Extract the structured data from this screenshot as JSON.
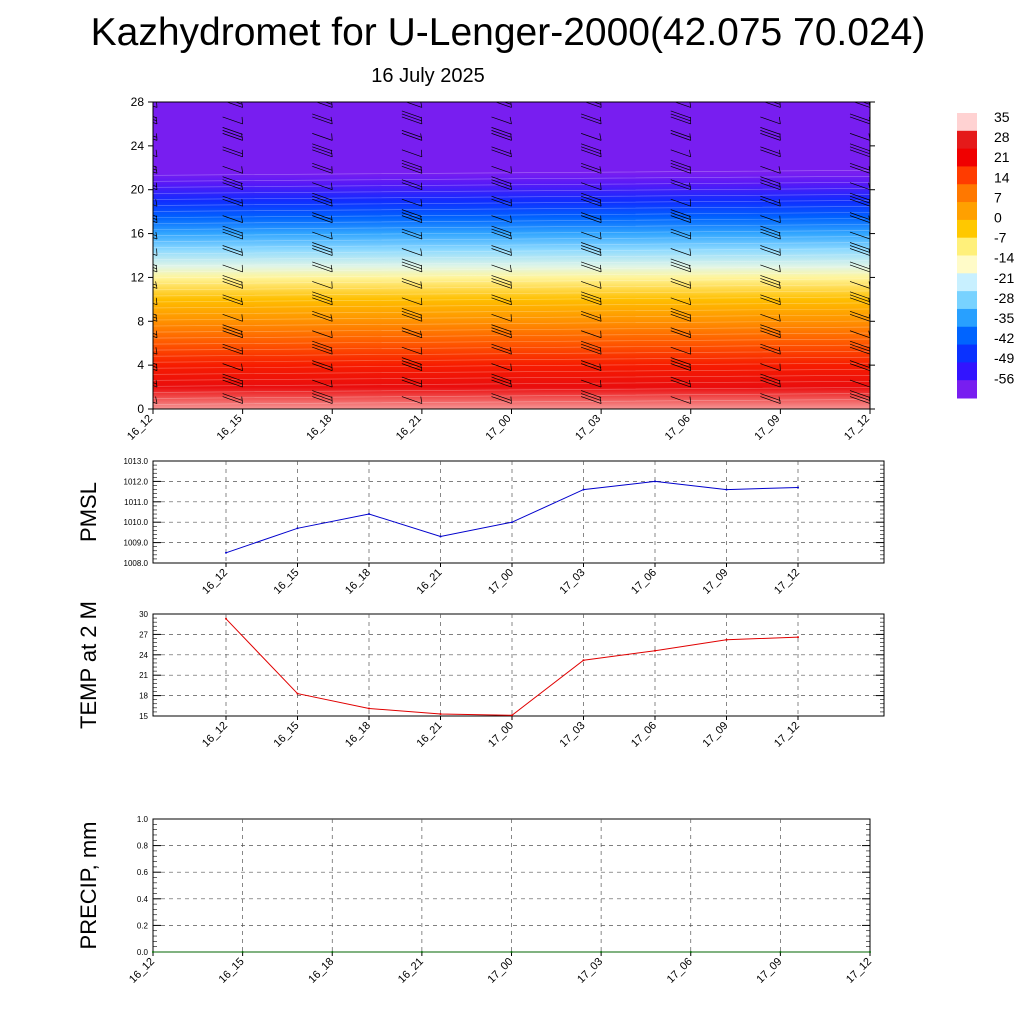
{
  "title": "Kazhydromet for U-Lenger-2000(42.075 70.024)",
  "subtitle": "16 July 2025",
  "colorbar": {
    "labels": [
      "35",
      "28",
      "21",
      "14",
      "7",
      "0",
      "-7",
      "-14",
      "-21",
      "-28",
      "-35",
      "-42",
      "-49",
      "-56"
    ],
    "colors": [
      "#ffd2d2",
      "#e51a1a",
      "#f00000",
      "#ff3c00",
      "#ff7800",
      "#ffa000",
      "#ffc800",
      "#fff07a",
      "#fffbc8",
      "#c8f0ff",
      "#78d2ff",
      "#28a0ff",
      "#0064ff",
      "#0a32ff",
      "#3214ff",
      "#781ef0"
    ]
  },
  "chart_data": [
    {
      "type": "heatmap",
      "name": "temperature-height-section",
      "x": [
        "16_12",
        "16_15",
        "16_18",
        "16_21",
        "17_00",
        "17_03",
        "17_06",
        "17_09",
        "17_12"
      ],
      "y_ticks": [
        0,
        4,
        8,
        12,
        16,
        20,
        24,
        28
      ],
      "ylim": [
        0,
        28
      ],
      "color_scale": [
        -56,
        35
      ],
      "profile": [
        {
          "h": 0,
          "t": 33
        },
        {
          "h": 2,
          "t": 26
        },
        {
          "h": 4,
          "t": 20
        },
        {
          "h": 6,
          "t": 14
        },
        {
          "h": 8,
          "t": 7
        },
        {
          "h": 10,
          "t": 0
        },
        {
          "h": 12,
          "t": -10
        },
        {
          "h": 13,
          "t": -17
        },
        {
          "h": 14.5,
          "t": -24
        },
        {
          "h": 16,
          "t": -31
        },
        {
          "h": 17.5,
          "t": -38
        },
        {
          "h": 19,
          "t": -45
        },
        {
          "h": 20.5,
          "t": -53
        },
        {
          "h": 21.5,
          "t": -56
        },
        {
          "h": 22.2,
          "t": -70
        },
        {
          "h": 28,
          "t": -70
        }
      ],
      "wind_barb_levels": [
        0.5,
        2,
        3.5,
        5,
        6.5,
        8,
        9.5,
        11,
        12.5,
        14,
        15.5,
        17,
        18.5,
        20,
        21.5,
        23,
        24.5,
        26,
        27.5
      ]
    },
    {
      "type": "line",
      "name": "pmsl",
      "ylabel": "PMSL",
      "categories": [
        "16_12",
        "16_15",
        "16_18",
        "16_21",
        "17_00",
        "17_03",
        "17_06",
        "17_09",
        "17_12"
      ],
      "values": [
        1008.5,
        1009.7,
        1010.4,
        1009.3,
        1010.0,
        1011.6,
        1012.0,
        1011.6,
        1011.7
      ],
      "ylim": [
        1008.0,
        1013.0
      ],
      "y_ticks": [
        "1008.0",
        "1009.0",
        "1010.0",
        "1011.0",
        "1012.0",
        "1013.0"
      ],
      "color": "#0000cc"
    },
    {
      "type": "line",
      "name": "temp-2m",
      "ylabel": "TEMP at 2 M",
      "categories": [
        "16_12",
        "16_15",
        "16_18",
        "16_21",
        "17_00",
        "17_03",
        "17_06",
        "17_09",
        "17_12"
      ],
      "values": [
        29.3,
        18.3,
        16.1,
        15.3,
        15.1,
        23.2,
        24.6,
        26.2,
        26.6
      ],
      "ylim": [
        15,
        30
      ],
      "y_ticks": [
        "15",
        "18",
        "21",
        "24",
        "27",
        "30"
      ],
      "color": "#e00000"
    },
    {
      "type": "line",
      "name": "precip",
      "ylabel": "PRECIP, mm",
      "categories": [
        "16_12",
        "16_15",
        "16_18",
        "16_21",
        "17_00",
        "17_03",
        "17_06",
        "17_09",
        "17_12"
      ],
      "values": [
        0,
        0,
        0,
        0,
        0,
        0,
        0,
        0,
        0
      ],
      "ylim": [
        0,
        1
      ],
      "y_ticks": [
        "0.0",
        "0.2",
        "0.4",
        "0.6",
        "0.8",
        "1.0"
      ],
      "color": "#006400"
    }
  ]
}
